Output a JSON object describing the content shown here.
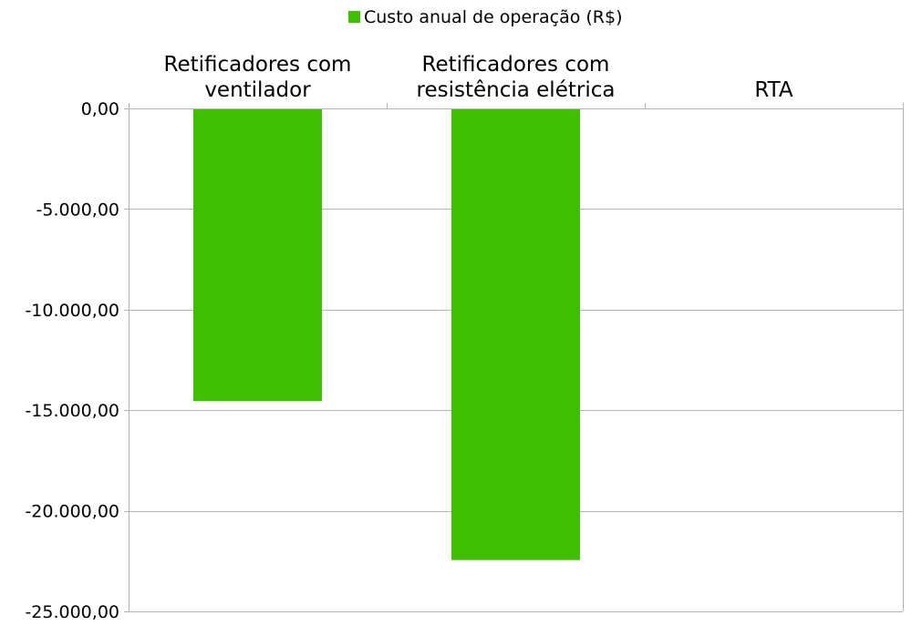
{
  "chart_data": {
    "type": "bar",
    "categories": [
      [
        "Retificadores com",
        "ventilador"
      ],
      [
        "Retificadores com",
        "resistência elétrica"
      ],
      [
        "RTA"
      ]
    ],
    "series": [
      {
        "name": "Custo anual de operação (R$)",
        "color": "#3fbf00",
        "values": [
          -14550,
          -22450,
          0
        ]
      }
    ],
    "ylim": [
      -25000,
      0
    ],
    "yticks": [
      0,
      -5000,
      -10000,
      -15000,
      -20000,
      -25000
    ],
    "ytick_labels": [
      "0,00",
      "-5.000,00",
      "-10.000,00",
      "-15.000,00",
      "-20.000,00",
      "-25.000,00"
    ],
    "grid": true,
    "legend_position": "top-center",
    "xlabel": "",
    "ylabel": "",
    "title": ""
  }
}
